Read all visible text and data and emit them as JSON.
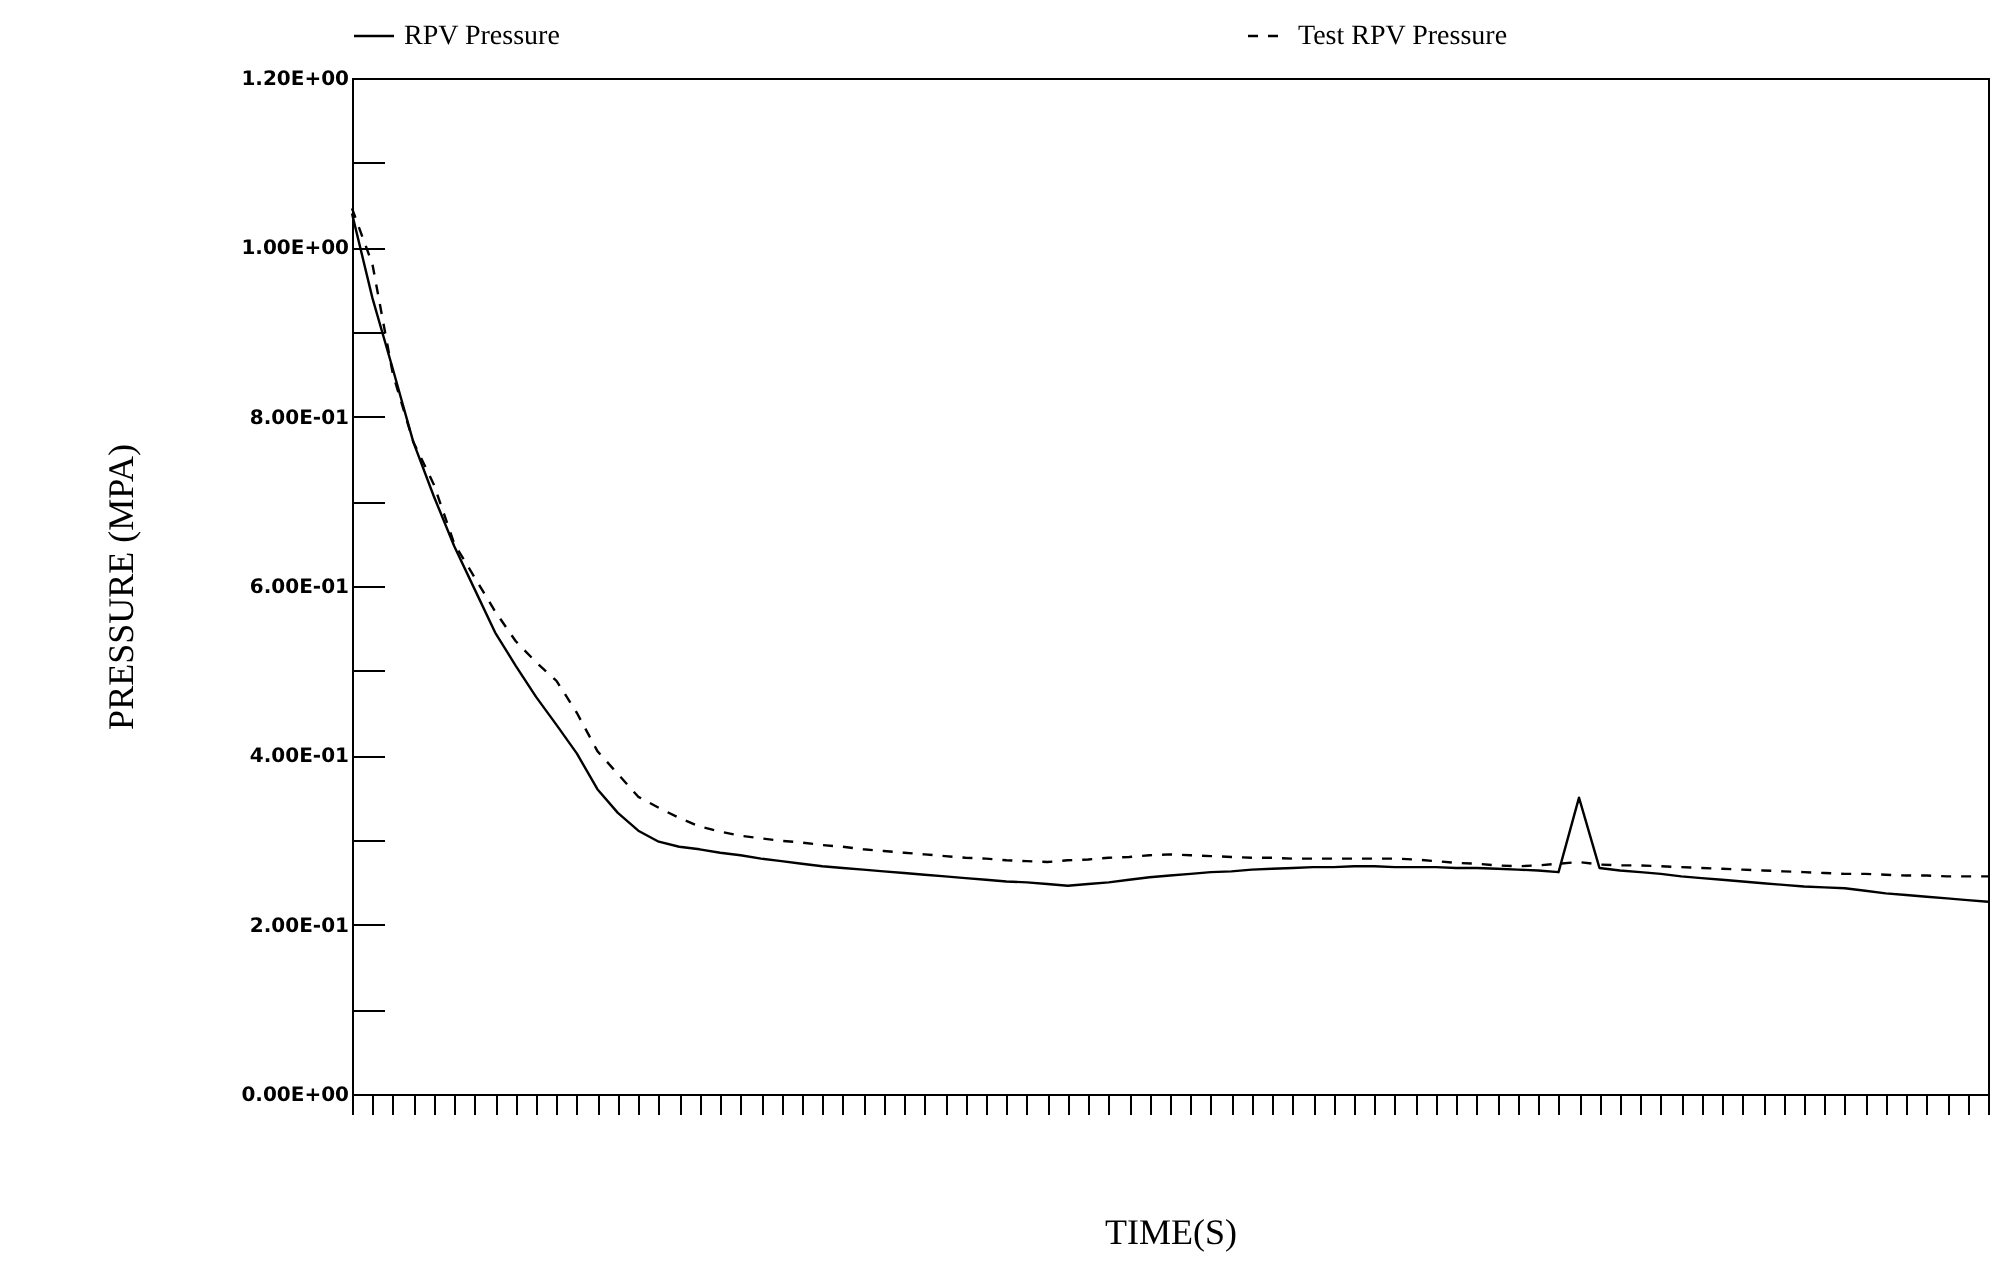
{
  "chart_data": {
    "type": "line",
    "xlabel": "TIME(S)",
    "ylabel": "PRESSURE (MPA)",
    "categories": [
      null,
      null,
      null,
      null,
      null,
      null,
      null,
      null,
      null,
      null,
      null,
      null,
      null,
      null,
      null,
      null,
      null,
      null,
      null,
      null,
      null,
      null,
      null,
      null,
      null,
      null,
      null,
      null,
      null,
      null,
      null,
      null,
      null,
      null,
      null,
      null,
      null,
      null,
      null,
      null,
      null,
      null,
      null,
      null,
      null,
      null,
      null,
      null,
      null,
      null,
      null,
      null,
      null,
      null,
      null,
      null,
      null,
      null,
      null,
      null,
      null,
      null,
      null,
      null,
      null,
      null,
      null,
      null,
      null,
      null,
      null,
      null,
      null,
      null,
      null,
      null,
      null,
      null,
      null,
      null,
      null
    ],
    "series": [
      {
        "name": "RPV Pressure",
        "color": "#000000",
        "line_style": "solid",
        "values": [
          1.04,
          0.94,
          0.856,
          0.77,
          0.706,
          0.647,
          0.596,
          0.545,
          0.506,
          0.469,
          0.436,
          0.402,
          0.36,
          0.332,
          0.311,
          0.298,
          0.292,
          0.289,
          0.285,
          0.282,
          0.278,
          0.275,
          0.272,
          0.269,
          0.267,
          0.265,
          0.263,
          0.261,
          0.259,
          0.257,
          0.255,
          0.253,
          0.251,
          0.25,
          0.248,
          0.246,
          0.248,
          0.25,
          0.253,
          0.256,
          0.258,
          0.26,
          0.262,
          0.263,
          0.265,
          0.266,
          0.267,
          0.268,
          0.268,
          0.269,
          0.269,
          0.268,
          0.268,
          0.268,
          0.267,
          0.267,
          0.266,
          0.265,
          0.264,
          0.262,
          0.35,
          0.267,
          0.264,
          0.262,
          0.26,
          0.257,
          0.255,
          0.253,
          0.251,
          0.249,
          0.247,
          0.245,
          0.244,
          0.243,
          0.24,
          0.237,
          0.235,
          0.233,
          0.231,
          0.229,
          0.227
        ]
      },
      {
        "name": "Test RPV Pressure",
        "color": "#000000",
        "line_style": "dashed",
        "values": [
          1.046,
          0.98,
          0.85,
          0.77,
          0.72,
          0.65,
          0.61,
          0.57,
          0.535,
          0.51,
          0.488,
          0.45,
          0.405,
          0.378,
          0.351,
          0.338,
          0.326,
          0.316,
          0.31,
          0.305,
          0.302,
          0.299,
          0.297,
          0.294,
          0.292,
          0.289,
          0.287,
          0.285,
          0.283,
          0.281,
          0.279,
          0.278,
          0.276,
          0.275,
          0.274,
          0.276,
          0.277,
          0.279,
          0.28,
          0.282,
          0.283,
          0.282,
          0.281,
          0.28,
          0.279,
          0.279,
          0.278,
          0.278,
          0.278,
          0.278,
          0.278,
          0.278,
          0.277,
          0.275,
          0.273,
          0.272,
          0.27,
          0.269,
          0.27,
          0.272,
          0.274,
          0.271,
          0.27,
          0.27,
          0.269,
          0.268,
          0.267,
          0.266,
          0.265,
          0.264,
          0.263,
          0.262,
          0.261,
          0.26,
          0.26,
          0.259,
          0.258,
          0.258,
          0.257,
          0.257,
          0.257
        ]
      }
    ],
    "ylim": [
      0,
      1.2
    ],
    "yticks": [
      {
        "value": 0,
        "label": "0.00E+00"
      },
      {
        "value": 0.1,
        "label": null
      },
      {
        "value": 0.2,
        "label": "2.00E-01"
      },
      {
        "value": 0.3,
        "label": null
      },
      {
        "value": 0.4,
        "label": "4.00E-01"
      },
      {
        "value": 0.5,
        "label": null
      },
      {
        "value": 0.6,
        "label": "6.00E-01"
      },
      {
        "value": 0.7,
        "label": null
      },
      {
        "value": 0.8,
        "label": "8.00E-01"
      },
      {
        "value": 0.9,
        "label": null
      },
      {
        "value": 1.0,
        "label": "1.00E+00"
      },
      {
        "value": 1.1,
        "label": null
      },
      {
        "value": 1.2,
        "label": "1.20E+00"
      }
    ],
    "tick_labels": "y",
    "grid": false,
    "legend": "top"
  }
}
